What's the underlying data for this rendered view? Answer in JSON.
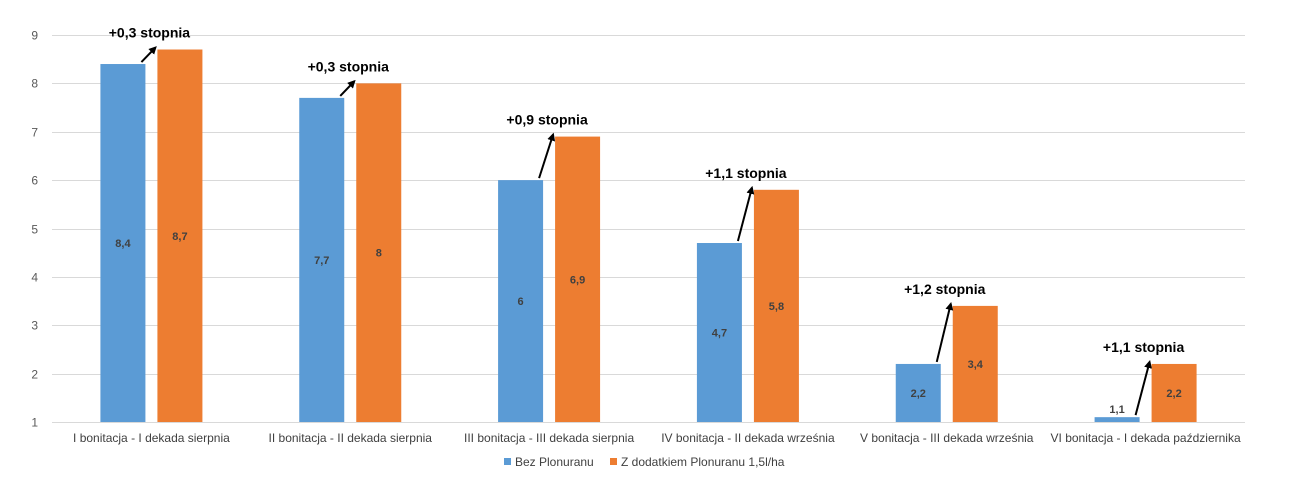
{
  "chart_data": {
    "type": "bar",
    "categories": [
      "I bonitacja - I dekada sierpnia",
      "II bonitacja - II dekada sierpnia",
      "III bonitacja - III dekada sierpnia",
      "IV bonitacja - II dekada września",
      "V bonitacja - III dekada września",
      "VI bonitacja - I dekada października"
    ],
    "series": [
      {
        "name": "Bez Plonuranu",
        "values": [
          8.4,
          7.7,
          6,
          4.7,
          2.2,
          1.1
        ],
        "labels": [
          "8,4",
          "7,7",
          "6",
          "4,7",
          "2,2",
          "1,1"
        ],
        "color": "#5b9bd5"
      },
      {
        "name": "Z dodatkiem Plonuranu 1,5l/ha",
        "values": [
          8.7,
          8,
          6.9,
          5.8,
          3.4,
          2.2
        ],
        "labels": [
          "8,7",
          "8",
          "6,9",
          "5,8",
          "3,4",
          "2,2"
        ],
        "color": "#ed7d31"
      }
    ],
    "annotations": [
      "+0,3 stopnia",
      "+0,3 stopnia",
      "+0,9 stopnia",
      "+1,1 stopnia",
      "+1,2 stopnia",
      "+1,1 stopnia"
    ],
    "yticks": [
      "1",
      "2",
      "3",
      "4",
      "5",
      "6",
      "7",
      "8",
      "9"
    ],
    "ylim": [
      1,
      9
    ],
    "grid": true,
    "legend": "bottom",
    "title": "",
    "xlabel": "",
    "ylabel": ""
  }
}
